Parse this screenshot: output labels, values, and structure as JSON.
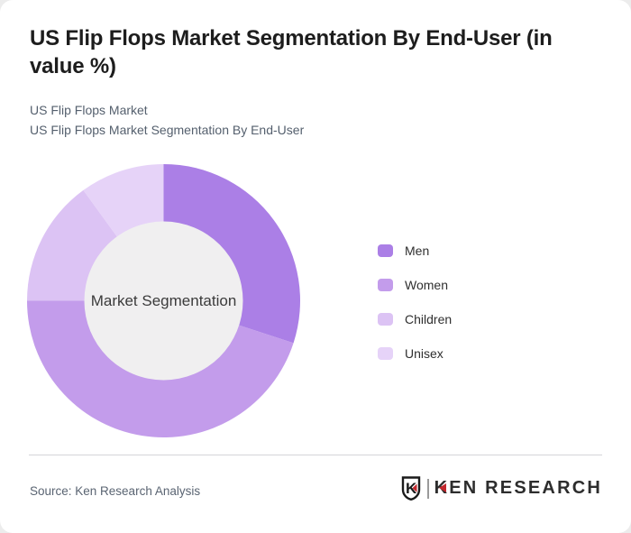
{
  "page": {
    "background_color": "#ececec",
    "card_background": "#ffffff"
  },
  "header": {
    "title": "US Flip Flops Market Segmentation By End-User (in value %)",
    "subtitle_line1": "US Flip Flops Market",
    "subtitle_line2": "US Flip Flops Market Segmentation By End-User"
  },
  "chart_data": {
    "type": "pie",
    "variant": "donut",
    "title": "US Flip Flops Market Segmentation By End-User (in value %)",
    "center_label": "Market Segmentation",
    "categories": [
      "Men",
      "Women",
      "Children",
      "Unisex"
    ],
    "values": [
      30,
      45,
      15,
      10
    ],
    "unit": "value %",
    "colors": [
      "#ab7fe6",
      "#c39ceb",
      "#dcc3f4",
      "#e6d3f8"
    ],
    "hole_color": "#f0eff0",
    "inner_radius_ratio": 0.58,
    "start_angle_deg": 0,
    "direction": "clockwise",
    "legend_position": "right",
    "data_labels_shown": false
  },
  "legend": {
    "items": [
      {
        "label": "Men",
        "color": "#ab7fe6"
      },
      {
        "label": "Women",
        "color": "#c39ceb"
      },
      {
        "label": "Children",
        "color": "#dcc3f4"
      },
      {
        "label": "Unisex",
        "color": "#e6d3f8"
      }
    ]
  },
  "footer": {
    "source": "Source: Ken Research Analysis",
    "logo_text": "KEN RESEARCH",
    "logo_badge_letter": "K",
    "logo_accent_color": "#c2272d",
    "logo_ink_color": "#1a1a1a"
  }
}
